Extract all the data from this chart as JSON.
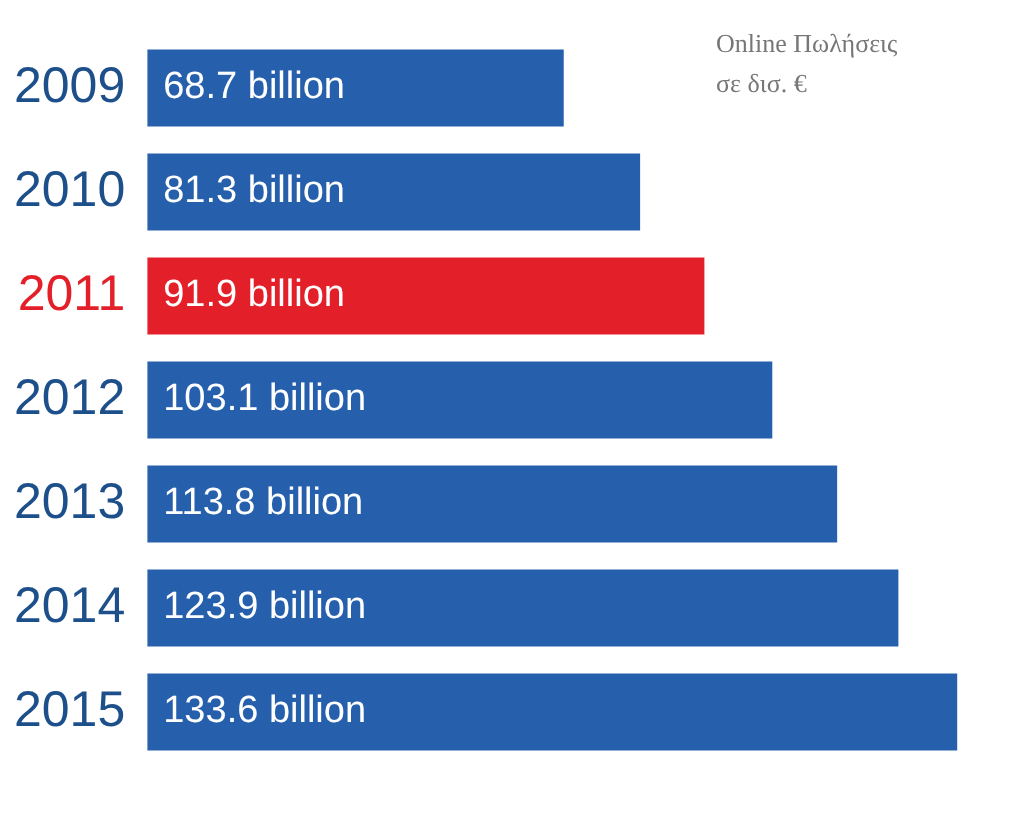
{
  "chart_data": {
    "type": "bar",
    "orientation": "horizontal",
    "categories": [
      "2009",
      "2010",
      "2011",
      "2012",
      "2013",
      "2014",
      "2015"
    ],
    "values": [
      68.7,
      81.3,
      91.9,
      103.1,
      113.8,
      123.9,
      133.6
    ],
    "colors": [
      "#2660ad",
      "#2660ad",
      "#e3202a",
      "#2660ad",
      "#2660ad",
      "#2660ad",
      "#2660ad"
    ],
    "value_labels": [
      "68.7 billion",
      "81.3 billion",
      "91.9 billion",
      "103.1 billion",
      "113.8 billion",
      "123.9 billion",
      "133.6 billion"
    ],
    "tick_labels": "y",
    "legend": false,
    "annotations": [
      "Online Πωλήσεις σε δισ. €"
    ]
  }
}
